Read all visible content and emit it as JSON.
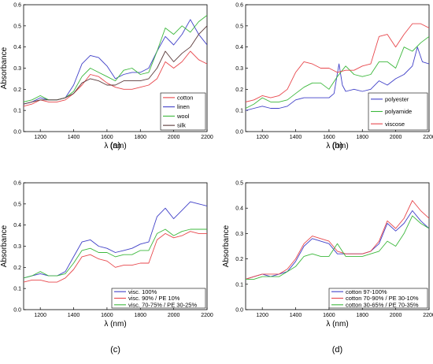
{
  "chart_data": [
    {
      "type": "line",
      "panel_label": "(a)",
      "xlabel": "λ (nm)",
      "ylabel": "Absorbance",
      "xlim": [
        1100,
        2200
      ],
      "ylim": [
        0.0,
        0.6
      ],
      "xticks": [
        1200,
        1400,
        1600,
        1800,
        2000,
        2200
      ],
      "yticks": [
        0.0,
        0.1,
        0.2,
        0.3,
        0.4,
        0.5,
        0.6
      ],
      "legend_position": "bottom-right",
      "series": [
        {
          "name": "cotton",
          "color": "#e8474c",
          "x": [
            1100,
            1150,
            1200,
            1250,
            1300,
            1350,
            1400,
            1450,
            1500,
            1550,
            1600,
            1650,
            1700,
            1750,
            1800,
            1850,
            1900,
            1950,
            2000,
            2050,
            2100,
            2150,
            2200
          ],
          "y": [
            0.12,
            0.13,
            0.15,
            0.14,
            0.14,
            0.15,
            0.18,
            0.22,
            0.27,
            0.26,
            0.23,
            0.21,
            0.2,
            0.2,
            0.21,
            0.22,
            0.25,
            0.33,
            0.3,
            0.33,
            0.38,
            0.34,
            0.32
          ]
        },
        {
          "name": "linen",
          "color": "#4040c8",
          "x": [
            1100,
            1150,
            1200,
            1250,
            1300,
            1350,
            1400,
            1450,
            1500,
            1550,
            1600,
            1650,
            1700,
            1750,
            1800,
            1850,
            1900,
            1950,
            2000,
            2050,
            2100,
            2150,
            2200
          ],
          "y": [
            0.13,
            0.14,
            0.16,
            0.15,
            0.15,
            0.16,
            0.22,
            0.32,
            0.36,
            0.35,
            0.31,
            0.25,
            0.27,
            0.28,
            0.28,
            0.3,
            0.38,
            0.45,
            0.41,
            0.46,
            0.53,
            0.46,
            0.41
          ]
        },
        {
          "name": "wool",
          "color": "#3cb83c",
          "x": [
            1100,
            1150,
            1200,
            1250,
            1300,
            1350,
            1400,
            1450,
            1500,
            1550,
            1600,
            1650,
            1700,
            1750,
            1800,
            1850,
            1900,
            1950,
            2000,
            2050,
            2100,
            2150,
            2200
          ],
          "y": [
            0.14,
            0.15,
            0.17,
            0.15,
            0.15,
            0.16,
            0.19,
            0.26,
            0.3,
            0.28,
            0.26,
            0.24,
            0.29,
            0.3,
            0.27,
            0.28,
            0.38,
            0.49,
            0.46,
            0.5,
            0.47,
            0.52,
            0.55
          ]
        },
        {
          "name": "silk",
          "color": "#5a3a3a",
          "x": [
            1100,
            1150,
            1200,
            1250,
            1300,
            1350,
            1400,
            1450,
            1500,
            1550,
            1600,
            1650,
            1700,
            1750,
            1800,
            1850,
            1900,
            1950,
            2000,
            2050,
            2100,
            2150,
            2200
          ],
          "y": [
            0.13,
            0.14,
            0.15,
            0.15,
            0.15,
            0.16,
            0.18,
            0.23,
            0.25,
            0.24,
            0.22,
            0.22,
            0.24,
            0.24,
            0.24,
            0.25,
            0.3,
            0.38,
            0.33,
            0.37,
            0.4,
            0.46,
            0.5
          ]
        }
      ]
    },
    {
      "type": "line",
      "panel_label": "(b)",
      "xlabel": "λ (nm)",
      "ylabel": "",
      "xlim": [
        1100,
        2200
      ],
      "ylim": [
        0.0,
        0.6
      ],
      "xticks": [
        1200,
        1400,
        1600,
        1800,
        2000,
        2200
      ],
      "yticks": [
        0.0,
        0.1,
        0.2,
        0.3,
        0.4,
        0.5,
        0.6
      ],
      "legend_position": "bottom-right",
      "series": [
        {
          "name": "polyester",
          "color": "#4040c8",
          "x": [
            1100,
            1150,
            1200,
            1250,
            1300,
            1350,
            1400,
            1450,
            1500,
            1550,
            1600,
            1630,
            1660,
            1680,
            1700,
            1750,
            1800,
            1850,
            1900,
            1950,
            2000,
            2050,
            2100,
            2130,
            2160,
            2200
          ],
          "y": [
            0.1,
            0.11,
            0.12,
            0.11,
            0.11,
            0.12,
            0.15,
            0.16,
            0.16,
            0.16,
            0.16,
            0.18,
            0.32,
            0.22,
            0.19,
            0.2,
            0.19,
            0.2,
            0.24,
            0.22,
            0.25,
            0.27,
            0.31,
            0.4,
            0.33,
            0.32
          ]
        },
        {
          "name": "polyamide",
          "color": "#3cb83c",
          "x": [
            1100,
            1150,
            1200,
            1250,
            1300,
            1350,
            1400,
            1450,
            1500,
            1550,
            1600,
            1650,
            1700,
            1750,
            1800,
            1850,
            1900,
            1950,
            2000,
            2050,
            2100,
            2150,
            2200
          ],
          "y": [
            0.11,
            0.13,
            0.16,
            0.14,
            0.14,
            0.15,
            0.18,
            0.21,
            0.23,
            0.23,
            0.2,
            0.26,
            0.31,
            0.27,
            0.26,
            0.27,
            0.33,
            0.33,
            0.3,
            0.4,
            0.38,
            0.42,
            0.45
          ]
        },
        {
          "name": "viscose",
          "color": "#e8474c",
          "x": [
            1100,
            1150,
            1200,
            1250,
            1300,
            1350,
            1400,
            1450,
            1500,
            1550,
            1600,
            1650,
            1700,
            1750,
            1800,
            1850,
            1900,
            1950,
            2000,
            2050,
            2100,
            2150,
            2200
          ],
          "y": [
            0.14,
            0.15,
            0.17,
            0.16,
            0.17,
            0.2,
            0.28,
            0.33,
            0.32,
            0.3,
            0.3,
            0.28,
            0.29,
            0.29,
            0.31,
            0.32,
            0.45,
            0.46,
            0.4,
            0.46,
            0.51,
            0.51,
            0.49
          ]
        }
      ]
    },
    {
      "type": "line",
      "panel_label": "(c)",
      "xlabel": "λ (nm)",
      "ylabel": "Absorbance",
      "xlim": [
        1100,
        2200
      ],
      "ylim": [
        0.0,
        0.6
      ],
      "xticks": [
        1200,
        1400,
        1600,
        1800,
        2000,
        2200
      ],
      "yticks": [
        0.0,
        0.1,
        0.2,
        0.3,
        0.4,
        0.5,
        0.6
      ],
      "legend_position": "bottom-right",
      "series": [
        {
          "name": "visc. 100%",
          "color": "#4040c8",
          "x": [
            1100,
            1150,
            1200,
            1250,
            1300,
            1350,
            1400,
            1450,
            1500,
            1550,
            1600,
            1650,
            1700,
            1750,
            1800,
            1850,
            1900,
            1950,
            2000,
            2050,
            2100,
            2150,
            2200
          ],
          "y": [
            0.15,
            0.16,
            0.17,
            0.16,
            0.16,
            0.18,
            0.25,
            0.32,
            0.33,
            0.3,
            0.29,
            0.27,
            0.28,
            0.29,
            0.31,
            0.32,
            0.44,
            0.48,
            0.43,
            0.47,
            0.51,
            0.5,
            0.49
          ]
        },
        {
          "name": "visc. 90% / PE 10%",
          "color": "#e8474c",
          "x": [
            1100,
            1150,
            1200,
            1250,
            1300,
            1350,
            1400,
            1450,
            1500,
            1550,
            1600,
            1650,
            1700,
            1750,
            1800,
            1850,
            1900,
            1950,
            2000,
            2050,
            2100,
            2150,
            2200
          ],
          "y": [
            0.13,
            0.14,
            0.14,
            0.13,
            0.13,
            0.15,
            0.19,
            0.25,
            0.26,
            0.24,
            0.23,
            0.2,
            0.21,
            0.21,
            0.22,
            0.22,
            0.33,
            0.36,
            0.34,
            0.35,
            0.37,
            0.36,
            0.36
          ]
        },
        {
          "name": "visc. 70-75% / PE 30-25%",
          "color": "#3cb83c",
          "x": [
            1100,
            1150,
            1200,
            1250,
            1300,
            1350,
            1400,
            1450,
            1500,
            1550,
            1600,
            1650,
            1700,
            1750,
            1800,
            1850,
            1900,
            1950,
            2000,
            2050,
            2100,
            2150,
            2200
          ],
          "y": [
            0.15,
            0.16,
            0.18,
            0.16,
            0.16,
            0.17,
            0.22,
            0.28,
            0.29,
            0.27,
            0.27,
            0.25,
            0.26,
            0.26,
            0.28,
            0.28,
            0.36,
            0.38,
            0.35,
            0.37,
            0.38,
            0.38,
            0.38
          ]
        }
      ]
    },
    {
      "type": "line",
      "panel_label": "(d)",
      "xlabel": "λ (nm)",
      "ylabel": "Absorbance",
      "xlim": [
        1100,
        2200
      ],
      "ylim": [
        0.0,
        0.5
      ],
      "xticks": [
        1200,
        1400,
        1600,
        1800,
        2000,
        2200
      ],
      "yticks": [
        0.0,
        0.1,
        0.2,
        0.3,
        0.4,
        0.5
      ],
      "legend_position": "bottom-right",
      "series": [
        {
          "name": "cotton 97-100%",
          "color": "#4040c8",
          "x": [
            1100,
            1150,
            1200,
            1250,
            1300,
            1350,
            1400,
            1450,
            1500,
            1550,
            1600,
            1650,
            1700,
            1750,
            1800,
            1850,
            1900,
            1950,
            2000,
            2050,
            2100,
            2150,
            2200
          ],
          "y": [
            0.12,
            0.13,
            0.14,
            0.13,
            0.14,
            0.15,
            0.19,
            0.25,
            0.28,
            0.27,
            0.26,
            0.22,
            0.22,
            0.22,
            0.22,
            0.23,
            0.26,
            0.34,
            0.31,
            0.34,
            0.39,
            0.35,
            0.32
          ]
        },
        {
          "name": "cotton 70-90% / PE 30-10%",
          "color": "#e8474c",
          "x": [
            1100,
            1150,
            1200,
            1250,
            1300,
            1350,
            1400,
            1450,
            1500,
            1550,
            1600,
            1650,
            1700,
            1750,
            1800,
            1850,
            1900,
            1950,
            2000,
            2050,
            2100,
            2150,
            2200
          ],
          "y": [
            0.12,
            0.13,
            0.14,
            0.14,
            0.14,
            0.16,
            0.2,
            0.26,
            0.29,
            0.28,
            0.27,
            0.23,
            0.22,
            0.22,
            0.22,
            0.23,
            0.27,
            0.35,
            0.32,
            0.36,
            0.43,
            0.39,
            0.36
          ]
        },
        {
          "name": "cotton 30-65% / PE 70-35%",
          "color": "#3cb83c",
          "x": [
            1100,
            1150,
            1200,
            1250,
            1300,
            1350,
            1400,
            1450,
            1500,
            1550,
            1600,
            1650,
            1700,
            1750,
            1800,
            1850,
            1900,
            1950,
            2000,
            2050,
            2100,
            2150,
            2200
          ],
          "y": [
            0.12,
            0.12,
            0.13,
            0.13,
            0.13,
            0.15,
            0.17,
            0.21,
            0.22,
            0.21,
            0.21,
            0.26,
            0.21,
            0.21,
            0.21,
            0.22,
            0.23,
            0.27,
            0.25,
            0.3,
            0.37,
            0.34,
            0.32
          ]
        }
      ]
    }
  ]
}
